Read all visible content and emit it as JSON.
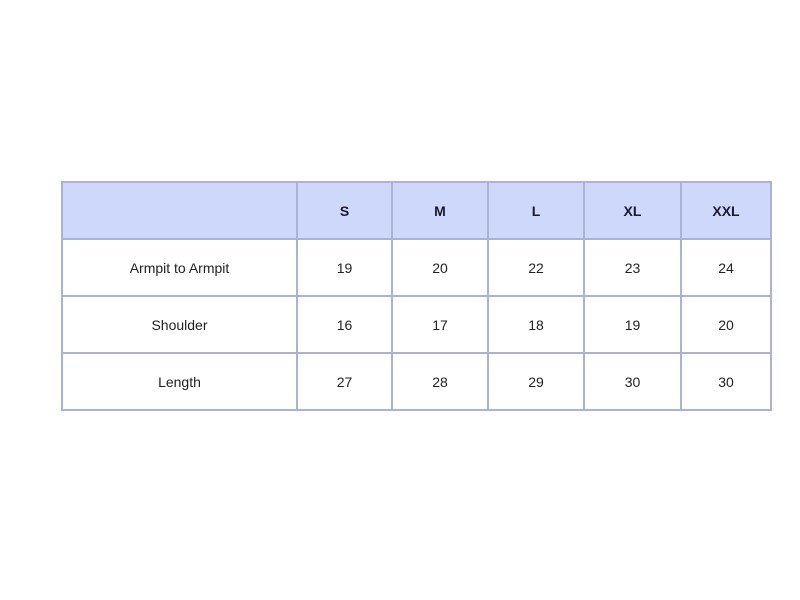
{
  "table": {
    "headers": [
      "",
      "S",
      "M",
      "L",
      "XL",
      "XXL"
    ],
    "rows": [
      {
        "label": "Armpit to Armpit",
        "values": [
          "19",
          "20",
          "22",
          "23",
          "24"
        ]
      },
      {
        "label": "Shoulder",
        "values": [
          "16",
          "17",
          "18",
          "19",
          "20"
        ]
      },
      {
        "label": "Length",
        "values": [
          "27",
          "28",
          "29",
          "30",
          "30"
        ]
      }
    ],
    "colors": {
      "header_bg": "#cdd8fb",
      "border": "#aab2d8"
    }
  }
}
